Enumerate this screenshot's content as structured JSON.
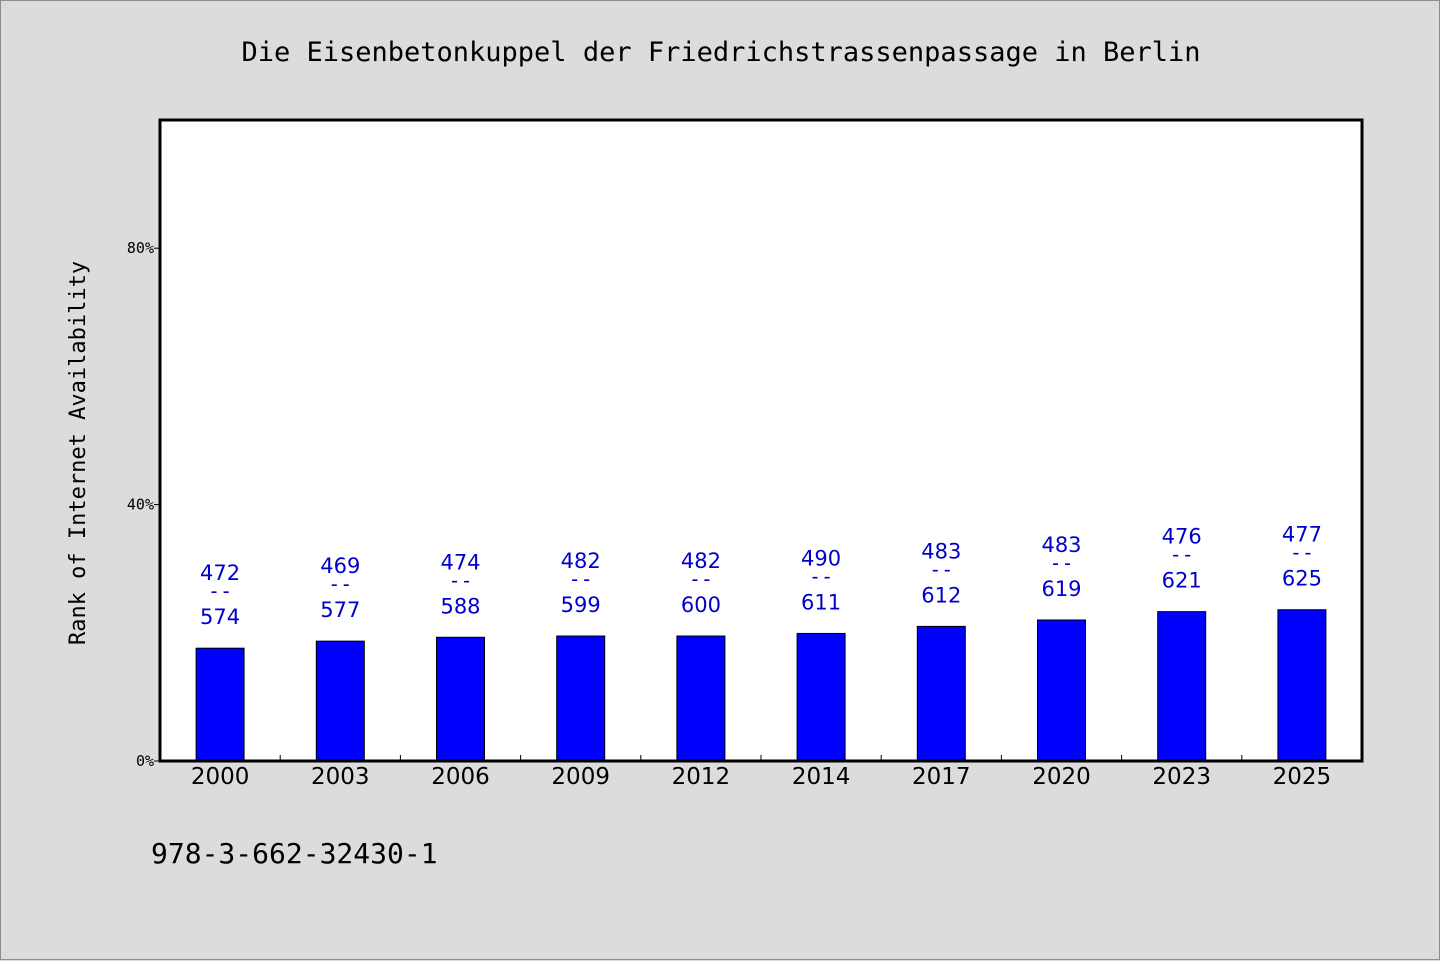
{
  "chart_data": {
    "type": "bar",
    "title": "Die Eisenbetonkuppel der Friedrichstrassenpassage in Berlin",
    "ylabel": "Rank of Internet Availability",
    "xlabel": "",
    "categories": [
      "2000",
      "2003",
      "2006",
      "2009",
      "2012",
      "2014",
      "2017",
      "2020",
      "2023",
      "2025"
    ],
    "values": [
      17.6,
      18.7,
      19.3,
      19.5,
      19.5,
      19.9,
      21.0,
      22.0,
      23.3,
      23.6
    ],
    "label_top": [
      "472",
      "469",
      "474",
      "482",
      "482",
      "490",
      "483",
      "483",
      "476",
      "477"
    ],
    "label_bottom": [
      "574",
      "577",
      "588",
      "599",
      "600",
      "611",
      "612",
      "619",
      "621",
      "625"
    ],
    "label_separator": "--",
    "ylim": [
      0,
      100
    ],
    "yticks": [
      0,
      40,
      80
    ],
    "ytick_labels": [
      "0%",
      "40%",
      "80%"
    ],
    "grid": false,
    "bar_color": "#0000ff",
    "label_color": "#0000cc"
  },
  "footer": {
    "isbn": "978-3-662-32430-1"
  }
}
